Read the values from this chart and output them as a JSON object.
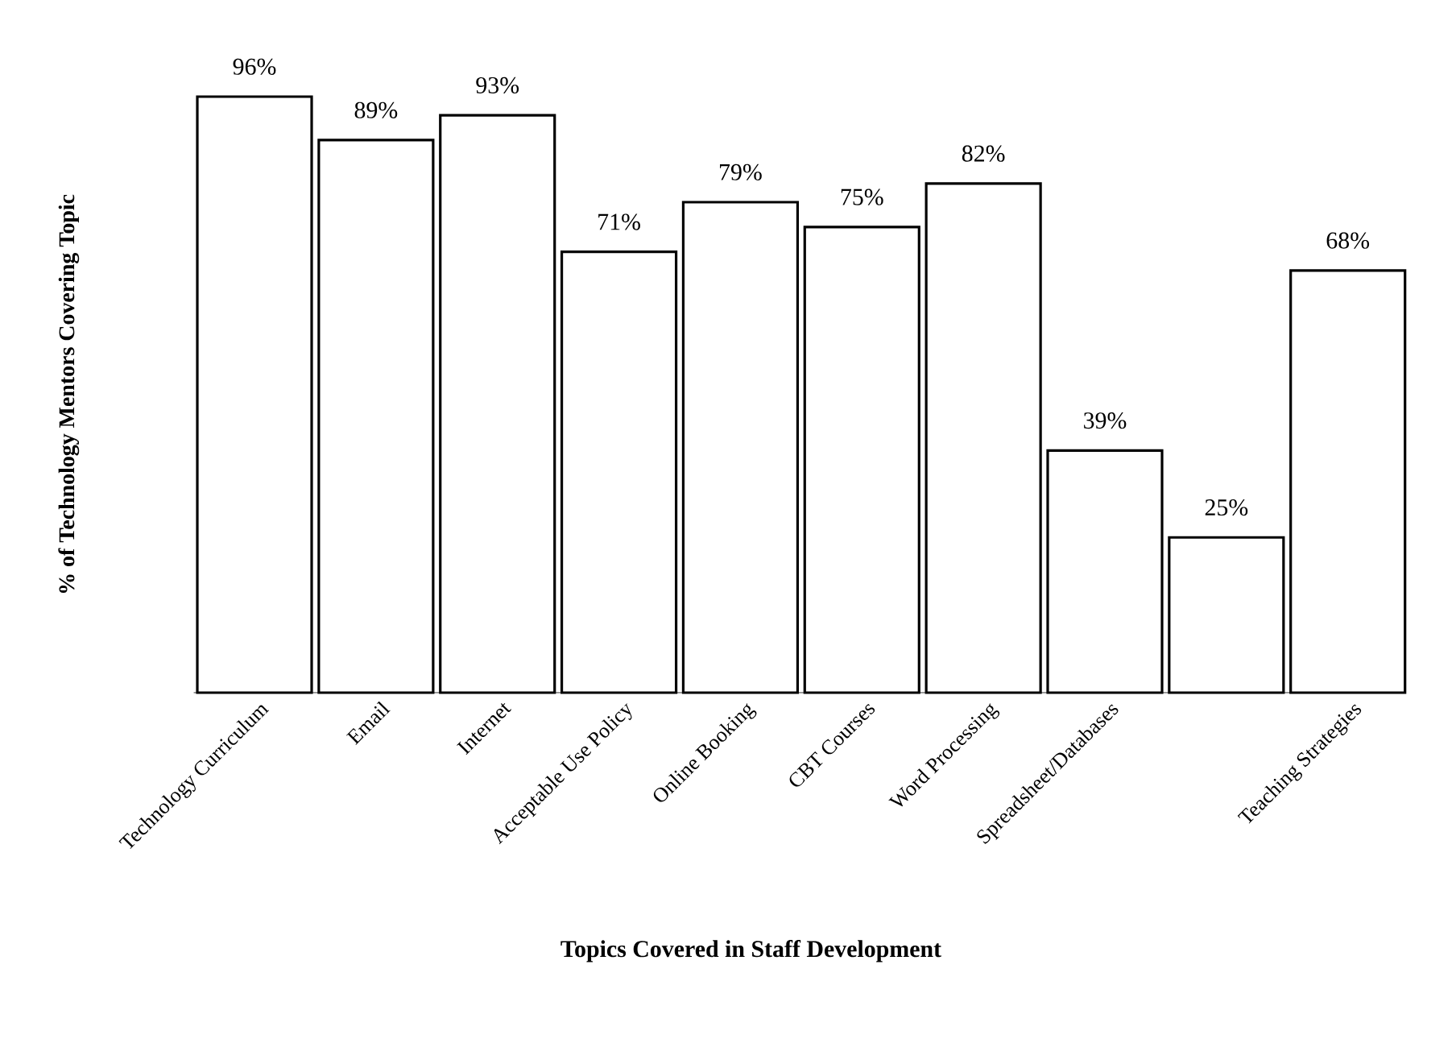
{
  "chart_data": {
    "type": "bar",
    "xlabel": "Topics Covered in Staff Development",
    "ylabel": "% of Technology Mentors Covering Topic",
    "categories": [
      "Technology Curriculum",
      "Email",
      "Internet",
      "Acceptable Use Policy",
      "Online Booking",
      "CBT Courses",
      "Word Processing",
      "Spreadsheet/Databases",
      null,
      "Teaching Strategies"
    ],
    "values": [
      96,
      89,
      93,
      71,
      79,
      75,
      82,
      39,
      25,
      68
    ],
    "value_labels": [
      "96%",
      "89%",
      "93%",
      "71%",
      "79%",
      "75%",
      "82%",
      "39%",
      "25%",
      "68%"
    ],
    "color": "#ffffff"
  }
}
